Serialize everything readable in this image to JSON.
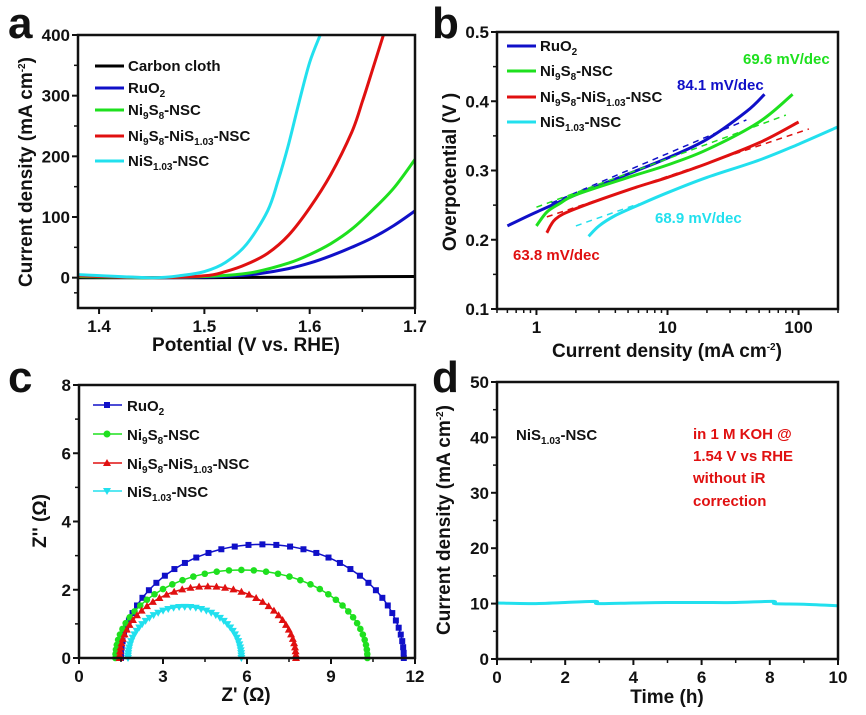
{
  "chart_data": [
    {
      "panel": "a",
      "type": "line",
      "xlabel": "Potential (V vs. RHE)",
      "ylabel": "Current density (mA cm^-2)",
      "xlim": [
        1.38,
        1.7
      ],
      "ylim": [
        -50,
        400
      ],
      "xticks": [
        1.4,
        1.5,
        1.6,
        1.7
      ],
      "xtick_labels": [
        "1.4",
        "1.5",
        "1.6",
        "1.7"
      ],
      "yticks": [
        0,
        100,
        200,
        300,
        400
      ],
      "ytick_labels": [
        "0",
        "100",
        "200",
        "300",
        "400"
      ],
      "legend_position": "top-left",
      "series": [
        {
          "name": "Carbon cloth",
          "color": "#000000",
          "x": [
            1.38,
            1.45,
            1.5,
            1.55,
            1.6,
            1.65,
            1.7
          ],
          "y": [
            0,
            0,
            0,
            0.5,
            1,
            1.5,
            2
          ]
        },
        {
          "name": "RuO2",
          "color": "#1010c8",
          "x": [
            1.38,
            1.45,
            1.5,
            1.53,
            1.55,
            1.58,
            1.6,
            1.62,
            1.64,
            1.66,
            1.68,
            1.7
          ],
          "y": [
            2,
            0,
            1,
            3,
            6,
            15,
            24,
            36,
            50,
            66,
            86,
            110
          ]
        },
        {
          "name": "Ni9S8-NSC",
          "color": "#1ee01e",
          "x": [
            1.38,
            1.45,
            1.5,
            1.53,
            1.55,
            1.58,
            1.6,
            1.62,
            1.64,
            1.66,
            1.68,
            1.7
          ],
          "y": [
            2,
            0,
            2,
            5,
            10,
            24,
            38,
            56,
            80,
            112,
            148,
            195
          ]
        },
        {
          "name": "Ni9S8-NiS1.03-NSC",
          "color": "#e01010",
          "x": [
            1.38,
            1.45,
            1.5,
            1.52,
            1.54,
            1.56,
            1.58,
            1.6,
            1.62,
            1.64,
            1.65,
            1.66,
            1.67
          ],
          "y": [
            3,
            0,
            3,
            10,
            22,
            40,
            70,
            115,
            170,
            240,
            290,
            345,
            400
          ]
        },
        {
          "name": "NiS1.03-NSC",
          "color": "#22e0ee",
          "x": [
            1.38,
            1.45,
            1.48,
            1.5,
            1.52,
            1.54,
            1.56,
            1.57,
            1.58,
            1.59,
            1.6,
            1.61
          ],
          "y": [
            5,
            0,
            4,
            10,
            25,
            55,
            110,
            160,
            220,
            290,
            355,
            400
          ]
        }
      ]
    },
    {
      "panel": "b",
      "type": "line",
      "xscale": "log",
      "xlabel": "Current density (mA cm^-2)",
      "ylabel": "Overpotential (V )",
      "xlim": [
        0.5,
        200
      ],
      "ylim": [
        0.1,
        0.5
      ],
      "xticks": [
        1,
        10,
        100
      ],
      "xtick_labels": [
        "1",
        "10",
        "100"
      ],
      "yticks": [
        0.1,
        0.2,
        0.3,
        0.4,
        0.5
      ],
      "ytick_labels": [
        "0.1",
        "0.2",
        "0.3",
        "0.4",
        "0.5"
      ],
      "legend_position": "top-left",
      "series": [
        {
          "name": "RuO2",
          "color": "#1010c8",
          "x": [
            0.6,
            1,
            2,
            5,
            10,
            20,
            40,
            55
          ],
          "y": [
            0.22,
            0.24,
            0.265,
            0.295,
            0.318,
            0.345,
            0.385,
            0.41
          ],
          "tafel_slope": "84.1 mV/dec",
          "fit_x": [
            1.3,
            40
          ],
          "fit_y": [
            0.253,
            0.373
          ]
        },
        {
          "name": "Ni9S8-NSC",
          "color": "#1ee01e",
          "x": [
            1,
            1.2,
            1.5,
            2,
            5,
            10,
            20,
            50,
            90
          ],
          "y": [
            0.22,
            0.24,
            0.252,
            0.265,
            0.29,
            0.308,
            0.33,
            0.37,
            0.41
          ],
          "tafel_slope": "69.6 mV/dec",
          "fit_x": [
            1,
            80
          ],
          "fit_y": [
            0.247,
            0.38
          ]
        },
        {
          "name": "Ni9S8-NiS1.03-NSC",
          "color": "#e01010",
          "x": [
            1.2,
            1.4,
            2,
            5,
            10,
            20,
            50,
            100
          ],
          "y": [
            0.21,
            0.23,
            0.245,
            0.272,
            0.29,
            0.31,
            0.34,
            0.37
          ],
          "tafel_slope": "63.8 mV/dec",
          "fit_x": [
            1.2,
            120
          ],
          "fit_y": [
            0.233,
            0.36
          ]
        },
        {
          "name": "NiS1.03-NSC",
          "color": "#22e0ee",
          "x": [
            2.5,
            3,
            4,
            6,
            10,
            20,
            50,
            100,
            200
          ],
          "y": [
            0.205,
            0.22,
            0.235,
            0.25,
            0.268,
            0.29,
            0.315,
            0.338,
            0.363
          ],
          "tafel_slope": "68.9 mV/dec",
          "fit_x": [
            2,
            6
          ],
          "fit_y": [
            0.22,
            0.252
          ]
        }
      ]
    },
    {
      "panel": "c",
      "type": "scatter",
      "xlabel": "Z' (Ω)",
      "ylabel": "Z'' (Ω)",
      "xlim": [
        0,
        12
      ],
      "ylim": [
        0,
        8
      ],
      "xticks": [
        0,
        3,
        6,
        9,
        12
      ],
      "xtick_labels": [
        "0",
        "3",
        "6",
        "9",
        "12"
      ],
      "yticks": [
        0,
        2,
        4,
        6,
        8
      ],
      "ytick_labels": [
        "0",
        "2",
        "4",
        "6",
        "8"
      ],
      "legend_position": "top-left",
      "series": [
        {
          "name": "RuO2",
          "color": "#1010c8",
          "marker": "square",
          "semicircle": {
            "x_start": 1.5,
            "x_end": 11.6,
            "peak_y": 3.33
          }
        },
        {
          "name": "Ni9S8-NSC",
          "color": "#1ee01e",
          "marker": "circle",
          "semicircle": {
            "x_start": 1.3,
            "x_end": 10.3,
            "peak_y": 2.58
          }
        },
        {
          "name": "Ni9S8-NiS1.03-NSC",
          "color": "#e01010",
          "marker": "triangle-up",
          "semicircle": {
            "x_start": 1.45,
            "x_end": 7.75,
            "peak_y": 2.1
          }
        },
        {
          "name": "NiS1.03-NSC",
          "color": "#22e0ee",
          "marker": "triangle-down",
          "semicircle": {
            "x_start": 1.75,
            "x_end": 5.8,
            "peak_y": 1.5
          }
        }
      ]
    },
    {
      "panel": "d",
      "type": "line",
      "xlabel": "Time (h)",
      "ylabel": "Current density (mA cm^-2)",
      "xlim": [
        0,
        10
      ],
      "ylim": [
        0,
        50
      ],
      "xticks": [
        0,
        2,
        4,
        6,
        8,
        10
      ],
      "xtick_labels": [
        "0",
        "2",
        "4",
        "6",
        "8",
        "10"
      ],
      "yticks": [
        0,
        10,
        20,
        30,
        40,
        50
      ],
      "ytick_labels": [
        "0",
        "10",
        "20",
        "30",
        "40",
        "50"
      ],
      "annotations": [
        "NiS1.03-NSC",
        "in 1 M KOH @",
        "1.54 V vs RHE",
        "without iR",
        "correction"
      ],
      "series": [
        {
          "name": "NiS1.03-NSC",
          "color": "#22e0ee",
          "x": [
            0,
            1,
            2,
            2.9,
            2.95,
            4,
            5,
            6,
            7,
            8.1,
            8.15,
            9,
            10
          ],
          "y": [
            10.1,
            10.0,
            10.2,
            10.4,
            10.0,
            10.1,
            10.2,
            10.2,
            10.2,
            10.4,
            10.0,
            9.9,
            9.6
          ]
        }
      ]
    }
  ],
  "panels": {
    "a": {
      "letter": "a",
      "xlabel": "Potential (V vs. RHE)",
      "ylabel": "Current density (mA cm",
      "ylabel_sup": "-2",
      "ylabel_end": ")"
    },
    "b": {
      "letter": "b",
      "xlabel": "Current density (mA cm",
      "xlabel_sup": "-2",
      "xlabel_end": ")",
      "ylabel": "Overpotential (V )",
      "slopes": {
        "ruo2": "84.1 mV/dec",
        "ni9s8": "69.6 mV/dec",
        "het": "63.8 mV/dec",
        "nis": "68.9 mV/dec"
      }
    },
    "c": {
      "letter": "c",
      "xlabel": "Z' (Ω)",
      "ylabel": "Z'' (Ω)"
    },
    "d": {
      "letter": "d",
      "xlabel": "Time (h)",
      "ylabel": "Current density (mA cm",
      "ylabel_sup": "-2",
      "ylabel_end": ")",
      "sample_label": "NiS",
      "sample_sub": "1.03",
      "sample_end": "-NSC",
      "condition_lines": [
        "in 1 M KOH @",
        "1.54 V vs RHE",
        "without iR",
        "correction"
      ]
    }
  },
  "legend": {
    "carbon": "Carbon cloth",
    "ruo2": {
      "a": "RuO",
      "b": "2"
    },
    "ni9s8": {
      "a": "Ni",
      "b": "9",
      "c": "S",
      "d": "8",
      "e": "-NSC"
    },
    "het": {
      "a": "Ni",
      "b": "9",
      "c": "S",
      "d": "8",
      "e": "-NiS",
      "f": "1.03",
      "g": "-NSC"
    },
    "nis": {
      "a": "NiS",
      "b": "1.03",
      "c": "-NSC"
    }
  },
  "colors": {
    "black": "#000000",
    "blue": "#1010c8",
    "green": "#1ee01e",
    "red": "#e01010",
    "cyan": "#22e0ee"
  }
}
